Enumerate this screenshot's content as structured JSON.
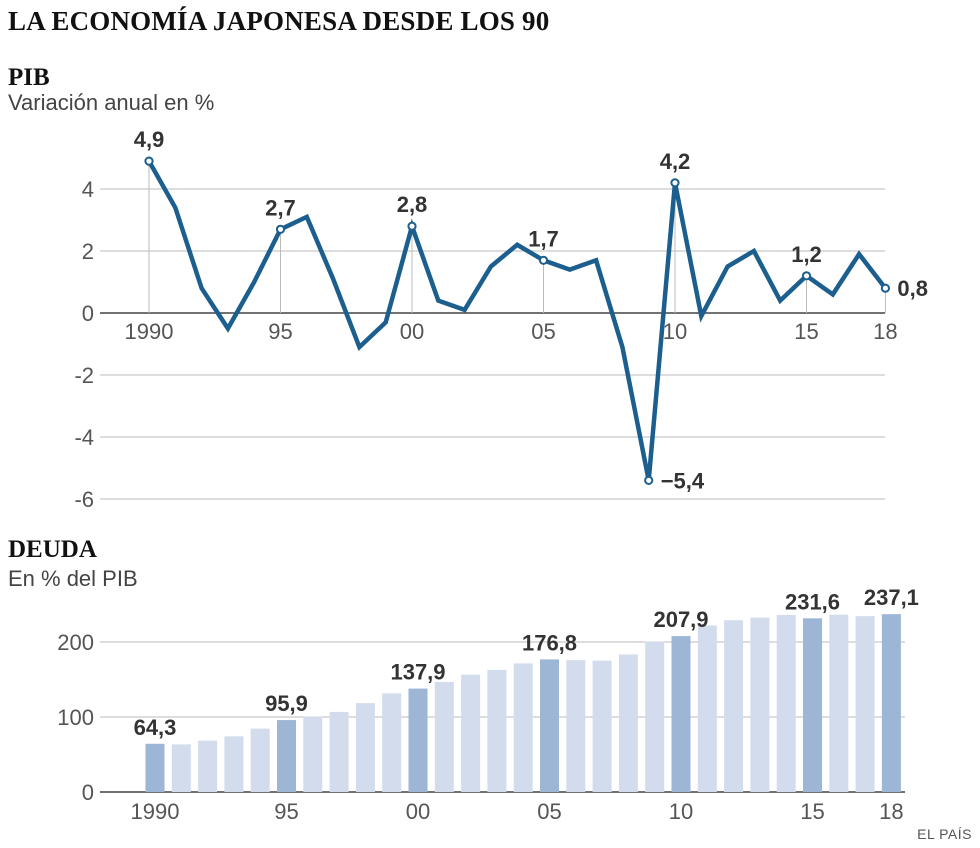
{
  "title": "LA ECONOMÍA JAPONESA DESDE LOS 90",
  "source": "EL PAÍS",
  "colors": {
    "line": "#1c5f8e",
    "bar_light": "#d3dcec",
    "bar_dark": "#9db6d6",
    "grid": "#bbbbbb",
    "text": "#333333"
  },
  "chart_data": [
    {
      "type": "line",
      "title": "PIB",
      "subtitle": "Variación anual en %",
      "x": [
        1990,
        1991,
        1992,
        1993,
        1994,
        1995,
        1996,
        1997,
        1998,
        1999,
        2000,
        2001,
        2002,
        2003,
        2004,
        2005,
        2006,
        2007,
        2008,
        2009,
        2010,
        2011,
        2012,
        2013,
        2014,
        2015,
        2016,
        2017,
        2018
      ],
      "series": [
        {
          "values": [
            4.9,
            3.4,
            0.8,
            -0.5,
            1.0,
            2.7,
            3.1,
            1.1,
            -1.1,
            -0.3,
            2.8,
            0.4,
            0.1,
            1.5,
            2.2,
            1.7,
            1.4,
            1.7,
            -1.1,
            -5.4,
            4.2,
            -0.1,
            1.5,
            2.0,
            0.4,
            1.2,
            0.6,
            1.9,
            0.8
          ]
        }
      ],
      "ylim": [
        -6,
        5
      ],
      "yticks": [
        {
          "value": 4,
          "label": "4"
        },
        {
          "value": 2,
          "label": "2"
        },
        {
          "value": 0,
          "label": "0"
        },
        {
          "value": -2,
          "label": "-2"
        },
        {
          "value": -4,
          "label": "-4"
        },
        {
          "value": -6,
          "label": "-6"
        }
      ],
      "xticks": [
        {
          "year": 1990,
          "label": "1990"
        },
        {
          "year": 1995,
          "label": "95"
        },
        {
          "year": 2000,
          "label": "00"
        },
        {
          "year": 2005,
          "label": "05"
        },
        {
          "year": 2010,
          "label": "10"
        },
        {
          "year": 2015,
          "label": "15"
        },
        {
          "year": 2018,
          "label": "18"
        }
      ],
      "annotations": [
        {
          "year": 1990,
          "label": "4,9",
          "pos": "above"
        },
        {
          "year": 1995,
          "label": "2,7",
          "pos": "above"
        },
        {
          "year": 2000,
          "label": "2,8",
          "pos": "above"
        },
        {
          "year": 2005,
          "label": "1,7",
          "pos": "above"
        },
        {
          "year": 2009,
          "label": "−5,4",
          "pos": "right"
        },
        {
          "year": 2010,
          "label": "4,2",
          "pos": "above"
        },
        {
          "year": 2015,
          "label": "1,2",
          "pos": "above"
        },
        {
          "year": 2018,
          "label": "0,8",
          "pos": "right"
        }
      ],
      "grid": true
    },
    {
      "type": "bar",
      "title": "DEUDA",
      "subtitle": "En % del PIB",
      "categories": [
        1990,
        1991,
        1992,
        1993,
        1994,
        1995,
        1996,
        1997,
        1998,
        1999,
        2000,
        2001,
        2002,
        2003,
        2004,
        2005,
        2006,
        2007,
        2008,
        2009,
        2010,
        2011,
        2012,
        2013,
        2014,
        2015,
        2016,
        2017,
        2018
      ],
      "values": [
        64.3,
        63.5,
        68.5,
        74.2,
        84.5,
        95.9,
        100.5,
        106.8,
        118.5,
        131.5,
        137.9,
        146.8,
        156.5,
        162.8,
        171.5,
        176.8,
        175.8,
        175.2,
        183.4,
        200.5,
        207.9,
        222.1,
        229.0,
        232.5,
        236.1,
        231.6,
        236.4,
        234.5,
        237.1
      ],
      "highlight": [
        1990,
        1995,
        2000,
        2005,
        2010,
        2015,
        2018
      ],
      "ylim": [
        0,
        250
      ],
      "yticks": [
        {
          "value": 200,
          "label": "200"
        },
        {
          "value": 100,
          "label": "100"
        },
        {
          "value": 0,
          "label": "0"
        }
      ],
      "xticks": [
        {
          "year": 1990,
          "label": "1990"
        },
        {
          "year": 1995,
          "label": "95"
        },
        {
          "year": 2000,
          "label": "00"
        },
        {
          "year": 2005,
          "label": "05"
        },
        {
          "year": 2010,
          "label": "10"
        },
        {
          "year": 2015,
          "label": "15"
        },
        {
          "year": 2018,
          "label": "18"
        }
      ],
      "annotations": [
        {
          "year": 1990,
          "label": "64,3"
        },
        {
          "year": 1995,
          "label": "95,9"
        },
        {
          "year": 2000,
          "label": "137,9"
        },
        {
          "year": 2005,
          "label": "176,8"
        },
        {
          "year": 2010,
          "label": "207,9"
        },
        {
          "year": 2015,
          "label": "231,6"
        },
        {
          "year": 2018,
          "label": "237,1"
        }
      ],
      "grid": true
    }
  ]
}
